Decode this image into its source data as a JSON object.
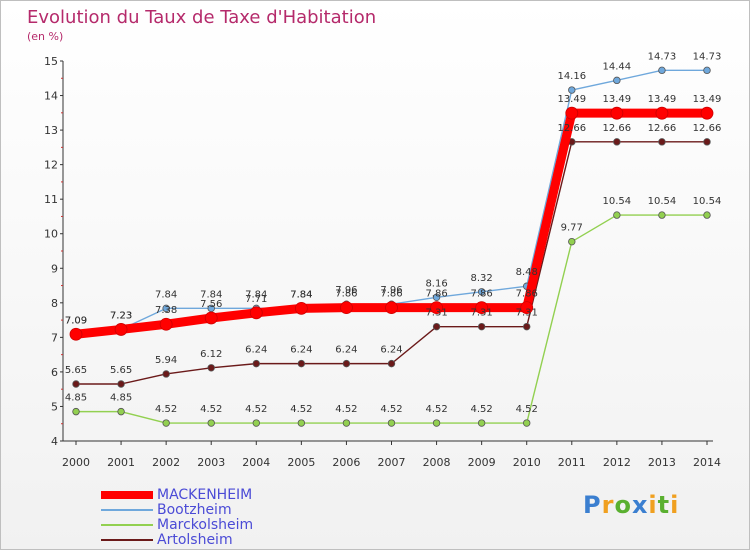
{
  "title": "Evolution du Taux de Taxe d'Habitation",
  "subtitle": "(en %)",
  "logo": {
    "text": "Proxiti",
    "colors": [
      "#3b7fd0",
      "#f0a020",
      "#5ab030",
      "#3b7fd0",
      "#f0a020",
      "#5ab030",
      "#f0a020"
    ]
  },
  "chart_data": {
    "type": "line",
    "x": [
      2000,
      2001,
      2002,
      2003,
      2004,
      2005,
      2006,
      2007,
      2008,
      2009,
      2010,
      2011,
      2012,
      2013,
      2014
    ],
    "ylim": [
      4,
      15
    ],
    "yticks": [
      4,
      5,
      6,
      7,
      8,
      9,
      10,
      11,
      12,
      13,
      14,
      15
    ],
    "grid": false,
    "legend": "bottom-left",
    "series": [
      {
        "name": "MACKENHEIM",
        "color": "#ff0000",
        "values": [
          7.09,
          7.23,
          7.38,
          7.56,
          7.71,
          7.84,
          7.86,
          7.86,
          7.86,
          7.86,
          7.86,
          13.49,
          13.49,
          13.49,
          13.49
        ]
      },
      {
        "name": "Bootzheim",
        "color": "#6fa8dc",
        "values": [
          7.09,
          7.23,
          7.84,
          7.84,
          7.84,
          7.84,
          7.96,
          7.96,
          8.16,
          8.32,
          8.48,
          14.16,
          14.44,
          14.73,
          14.73
        ]
      },
      {
        "name": "Marckolsheim",
        "color": "#92d050",
        "values": [
          4.85,
          4.85,
          4.52,
          4.52,
          4.52,
          4.52,
          4.52,
          4.52,
          4.52,
          4.52,
          4.52,
          9.77,
          10.54,
          10.54,
          10.54
        ]
      },
      {
        "name": "Artolsheim",
        "color": "#6b1a1a",
        "values": [
          5.65,
          5.65,
          5.94,
          6.12,
          6.24,
          6.24,
          6.24,
          6.24,
          7.31,
          7.31,
          7.31,
          12.66,
          12.66,
          12.66,
          12.66
        ]
      }
    ]
  }
}
